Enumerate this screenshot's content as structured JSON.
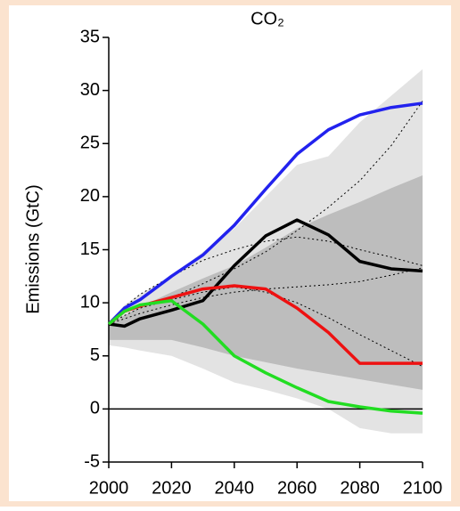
{
  "chart_data": {
    "type": "line",
    "title": "CO₂",
    "y_label": "Emissions (GtC)",
    "x": [
      2000,
      2005,
      2010,
      2020,
      2030,
      2040,
      2050,
      2060,
      2070,
      2080,
      2090,
      2100
    ],
    "xlim": [
      2000,
      2100
    ],
    "xticks": [
      2000,
      2020,
      2040,
      2060,
      2080,
      2100
    ],
    "ylim": [
      -5,
      35
    ],
    "yticks": [
      -5,
      0,
      5,
      10,
      15,
      20,
      25,
      30,
      35
    ],
    "zero_line": 0,
    "bands": [
      {
        "color": "#e3e3e3",
        "upper": [
          8,
          9.8,
          10.8,
          12.5,
          14.8,
          17,
          20,
          23,
          23.8,
          27,
          29.5,
          32
        ],
        "lower": [
          6,
          5.8,
          5.5,
          5,
          3.8,
          2.5,
          1.8,
          1,
          0,
          -1.8,
          -2.3,
          -2.3
        ]
      },
      {
        "color": "#bdbdbd",
        "upper": [
          8,
          8.8,
          9.6,
          11,
          12.3,
          13.5,
          15.2,
          17,
          18.3,
          19.5,
          20.8,
          22
        ],
        "lower": [
          6.5,
          6.5,
          6.5,
          6.5,
          5.8,
          5,
          4.4,
          3.8,
          3.3,
          2.8,
          2.3,
          1.8
        ]
      }
    ],
    "series": [
      {
        "color": "#000000",
        "dash": true,
        "values": [
          8,
          9.2,
          9.8,
          10.5,
          11.8,
          13.2,
          14.8,
          16.8,
          19,
          21.5,
          24.8,
          29
        ]
      },
      {
        "color": "#000000",
        "dash": true,
        "values": [
          8,
          9.6,
          10.8,
          12.5,
          14,
          15,
          15.8,
          16.2,
          15.8,
          15,
          14.3,
          13.5
        ]
      },
      {
        "color": "#000000",
        "dash": true,
        "values": [
          8,
          8.5,
          9,
          9.8,
          10.5,
          11,
          11.3,
          11.5,
          11.7,
          12,
          12.6,
          13.3
        ]
      },
      {
        "color": "#000000",
        "dash": true,
        "values": [
          8,
          8.8,
          9.5,
          10.3,
          11,
          11.5,
          11,
          10,
          8.6,
          7,
          5.5,
          4
        ]
      },
      {
        "color": "#2222ee",
        "dash": false,
        "values": [
          8,
          9.5,
          10.3,
          12.5,
          14.5,
          17.3,
          20.7,
          24,
          26.3,
          27.7,
          28.4,
          28.8
        ]
      },
      {
        "color": "#000000",
        "dash": false,
        "values": [
          8,
          7.8,
          8.5,
          9.3,
          10.2,
          13.5,
          16.3,
          17.8,
          16.4,
          13.9,
          13.2,
          13
        ]
      },
      {
        "color": "#ee1111",
        "dash": false,
        "values": [
          8,
          9.2,
          9.7,
          10.5,
          11.3,
          11.6,
          11.3,
          9.5,
          7.2,
          4.3,
          4.3,
          4.3
        ]
      },
      {
        "color": "#22dd22",
        "dash": false,
        "values": [
          8,
          9.2,
          9.8,
          10.2,
          8,
          5,
          3.4,
          2,
          0.7,
          0.2,
          -0.2,
          -0.4
        ]
      }
    ]
  }
}
